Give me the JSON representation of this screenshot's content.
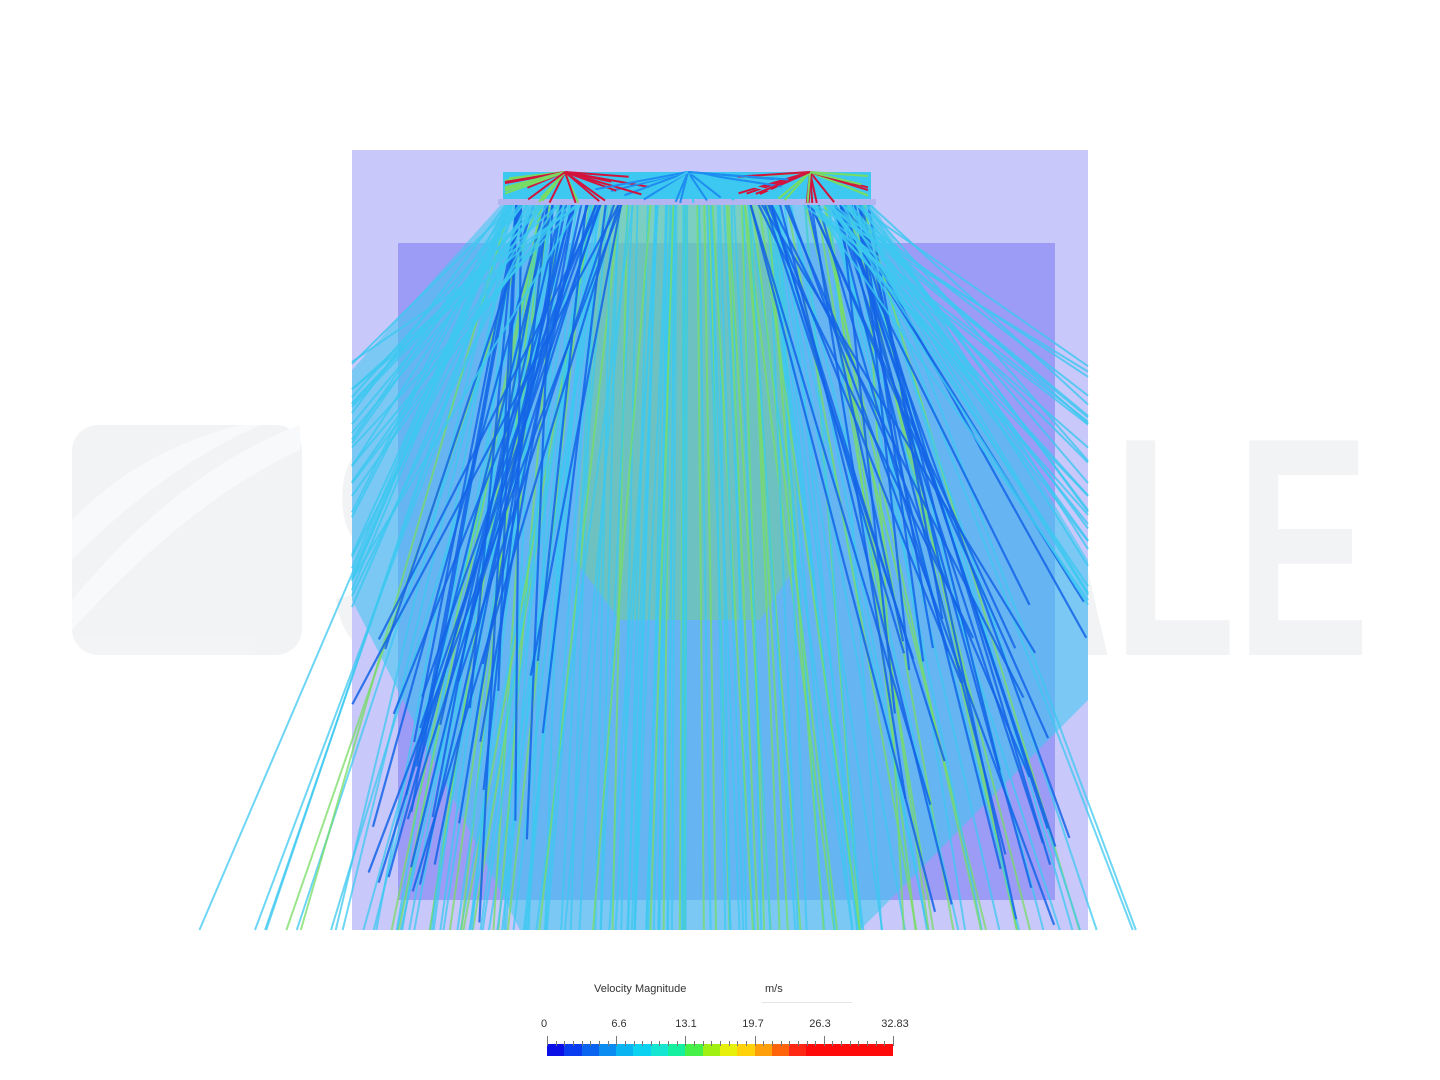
{
  "watermark": {
    "brand_text": "SIMSCALE"
  },
  "legend": {
    "title": "Velocity Magnitude",
    "unit": "m/s",
    "ticks": [
      "0",
      "6.6",
      "13.1",
      "19.7",
      "26.3",
      "32.83"
    ],
    "min": 0,
    "max": 32.83,
    "colors": [
      "#0a10e6",
      "#0a3cf0",
      "#0a64f0",
      "#0a8cf0",
      "#0ab4f0",
      "#0ad2f0",
      "#14e6d2",
      "#14f0a0",
      "#46f046",
      "#a0f014",
      "#e6f00a",
      "#ffd20a",
      "#ffa00a",
      "#ff640a",
      "#ff2814",
      "#ff0a0a",
      "#ff0a0a",
      "#ff0a0a",
      "#ff0a0a",
      "#ff0a0a"
    ]
  },
  "colors": {
    "outer_domain": "#c8c8fa",
    "inner_body": "#9c9cf6",
    "streamline_cyan": "#3cc8f0",
    "streamline_blue": "#1464e6",
    "streamline_green": "#78dc64",
    "streamline_red": "#d2143c"
  }
}
